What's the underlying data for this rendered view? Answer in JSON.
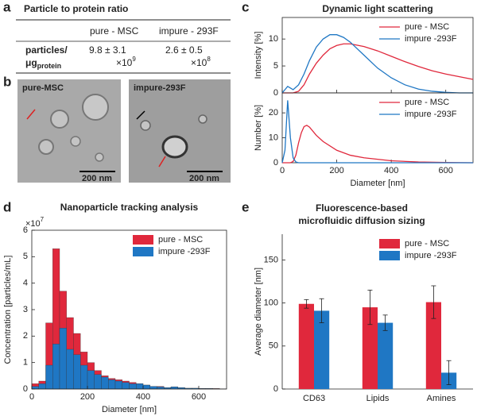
{
  "panel_labels": [
    "a",
    "b",
    "c",
    "d",
    "e"
  ],
  "table": {
    "title": "Particle to protein ratio",
    "columns": [
      "pure - MSC",
      "impure - 293F"
    ],
    "row": {
      "label": "particles/",
      "unit": "μg",
      "unit_sub": "protein",
      "cells": [
        {
          "value": "9.8 ± 3.1",
          "times": "×10",
          "exponent": "9"
        },
        {
          "value": "2.6 ± 0.5",
          "times": "×10",
          "exponent": "8"
        }
      ]
    }
  },
  "images": [
    {
      "label": "pure-MSC",
      "scale_bar": "200 nm"
    },
    {
      "label": "impure-293F",
      "scale_bar": "200 nm"
    }
  ],
  "chart_data": [
    {
      "type": "line",
      "title": "Dynamic light scattering",
      "ylabel": "Intensity [%]",
      "x": [
        0,
        20,
        40,
        60,
        80,
        100,
        125,
        150,
        175,
        200,
        225,
        250,
        300,
        350,
        400,
        450,
        500,
        550,
        600,
        650,
        700
      ],
      "series": [
        {
          "name": "pure - MSC",
          "color": "#e0283c",
          "values": [
            0,
            0,
            0,
            0.3,
            1.5,
            3.5,
            5.5,
            7,
            8.2,
            8.8,
            9.1,
            9.1,
            8.6,
            7.8,
            6.8,
            5.8,
            4.9,
            4.1,
            3.5,
            3.0,
            2.5
          ]
        },
        {
          "name": "impure -293F",
          "color": "#1f77c4",
          "values": [
            0,
            1.2,
            0.6,
            1.5,
            3.5,
            6,
            8.5,
            10,
            10.8,
            10.8,
            10.3,
            9.4,
            7.0,
            4.6,
            2.8,
            1.5,
            0.7,
            0.3,
            0.1,
            0,
            0
          ]
        }
      ],
      "xlim": [
        0,
        700
      ],
      "xticks": [
        0,
        200,
        400,
        600
      ],
      "show_xtick_labels": false,
      "ylim": [
        0,
        14
      ],
      "yticks": [
        0,
        5,
        10
      ],
      "legend": "upper right",
      "box": true
    },
    {
      "type": "line",
      "ylabel": "Number [%]",
      "xlabel": "Diameter [nm]",
      "x": [
        0,
        10,
        20,
        30,
        40,
        50,
        60,
        70,
        80,
        90,
        100,
        125,
        150,
        200,
        250,
        300,
        400,
        500,
        600,
        700
      ],
      "series": [
        {
          "name": "pure - MSC",
          "color": "#e0283c",
          "values": [
            0,
            0,
            0,
            0,
            0.5,
            3,
            8,
            12,
            14.5,
            15,
            14.3,
            11,
            8.5,
            5,
            3,
            2,
            0.8,
            0.3,
            0.1,
            0
          ]
        },
        {
          "name": "impure -293F",
          "color": "#1f77c4",
          "values": [
            0,
            5,
            25,
            10,
            2,
            0.3,
            0,
            0,
            0,
            0,
            0,
            0,
            0,
            0,
            0,
            0,
            0,
            0,
            0,
            0
          ]
        }
      ],
      "xlim": [
        0,
        700
      ],
      "xticks": [
        0,
        200,
        400,
        600
      ],
      "show_xtick_labels": true,
      "ylim": [
        0,
        28
      ],
      "yticks": [
        0,
        10,
        20
      ],
      "legend": "upper right",
      "box": true
    },
    {
      "type": "histogram",
      "title": "Nanoparticle tracking analysis",
      "ylabel": "Concentration [particles/mL]",
      "y_multiplier": "×10",
      "y_exponent": "7",
      "xlabel": "Diameter [nm]",
      "bins": [
        0,
        25,
        50,
        75,
        100,
        125,
        150,
        175,
        200,
        225,
        250,
        275,
        300,
        325,
        350,
        375,
        400,
        425,
        450,
        475,
        500,
        525,
        550,
        575,
        600,
        625,
        650,
        675,
        700
      ],
      "series": [
        {
          "name": "pure - MSC",
          "color": "#e0283c",
          "values": [
            0.2,
            0.3,
            2.5,
            5.3,
            3.7,
            2.7,
            2.1,
            1.4,
            1.0,
            0.7,
            0.5,
            0.4,
            0.35,
            0.3,
            0.25,
            0.2,
            0.15,
            0.1,
            0.1,
            0.05,
            0.08,
            0.05,
            0.03,
            0.03,
            0.02,
            0.02,
            0.02,
            0.01
          ]
        },
        {
          "name": "impure -293F",
          "color": "#1f77c4",
          "values": [
            0.1,
            0.2,
            0.9,
            1.7,
            2.3,
            1.5,
            1.3,
            0.9,
            0.7,
            0.55,
            0.45,
            0.35,
            0.3,
            0.25,
            0.2,
            0.2,
            0.15,
            0.1,
            0.08,
            0.05,
            0.08,
            0.05,
            0.03,
            0.03,
            0.02,
            0.02,
            0.01,
            0.01
          ]
        }
      ],
      "xlim": [
        0,
        700
      ],
      "xticks": [
        0,
        200,
        400,
        600
      ],
      "show_xtick_labels": true,
      "ylim": [
        0,
        6
      ],
      "yticks": [
        0,
        1,
        2,
        3,
        4,
        5,
        6
      ],
      "legend": "upper right",
      "box": true
    },
    {
      "type": "bar",
      "title_lines": [
        "Fluorescence-based",
        "microfluidic diffusion sizing"
      ],
      "ylabel": "Average diameter [nm]",
      "categories": [
        "CD63",
        "Lipids",
        "Amines"
      ],
      "series": [
        {
          "name": "pure - MSC",
          "color": "#e0283c",
          "values": [
            99,
            95,
            101
          ],
          "errors": [
            5,
            20,
            19
          ]
        },
        {
          "name": "impure -293F",
          "color": "#1f77c4",
          "values": [
            91,
            77,
            19
          ],
          "errors": [
            14,
            9,
            14
          ]
        }
      ],
      "ylim": [
        0,
        180
      ],
      "yticks": [
        0,
        50,
        100,
        150
      ],
      "legend": "upper right",
      "box": false
    }
  ]
}
